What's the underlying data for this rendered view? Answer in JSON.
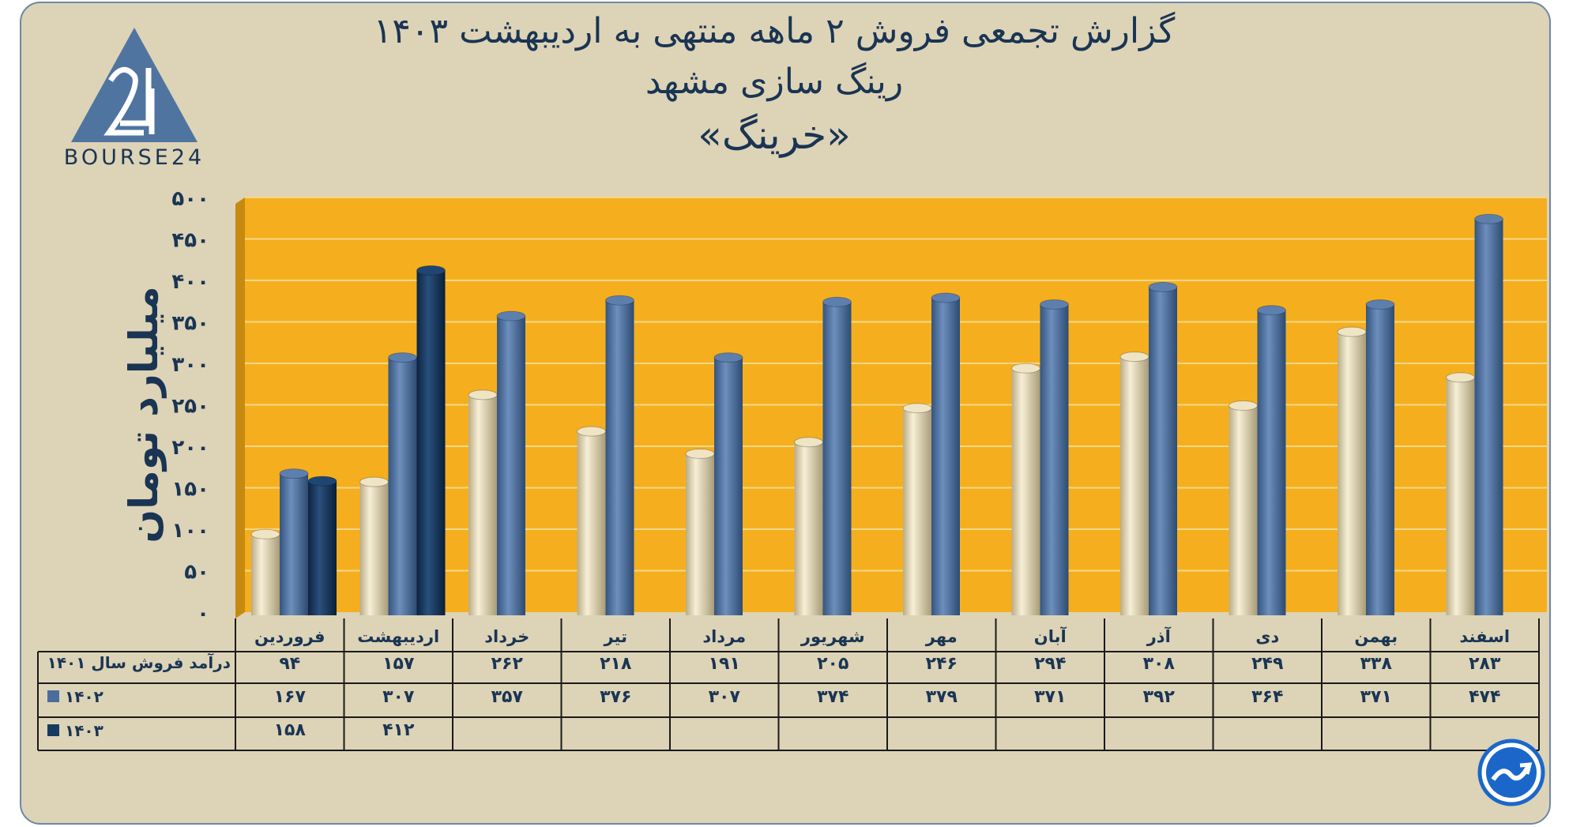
{
  "title": {
    "line1": "گزارش تجمعی فروش ۲ ماهه منتهی به اردیبهشت ۱۴۰۳",
    "line2": "رینگ سازی مشهد",
    "line3": "«خرینگ»"
  },
  "logo": {
    "text": "BOURSE24",
    "icon": "bourse24-logo-icon"
  },
  "badge": {
    "icon": "trend-arrow-icon"
  },
  "colors": {
    "plot_bg": "#f5af1e",
    "s1401": "#e6dab5",
    "s1402": "#4b6d9c",
    "s1403": "#163a61",
    "grid": "#f6d787"
  },
  "chart_data": {
    "type": "bar",
    "ylabel": "میلیارد تومان",
    "ylim": [
      0,
      500
    ],
    "yticks": [
      0,
      50,
      100,
      150,
      200,
      250,
      300,
      350,
      400,
      450,
      500
    ],
    "ytick_labels": [
      "۰",
      "۵۰",
      "۱۰۰",
      "۱۵۰",
      "۲۰۰",
      "۲۵۰",
      "۳۰۰",
      "۳۵۰",
      "۴۰۰",
      "۴۵۰",
      "۵۰۰"
    ],
    "categories": [
      "فروردین",
      "اردیبهشت",
      "خرداد",
      "تیر",
      "مرداد",
      "شهریور",
      "مهر",
      "آبان",
      "آذر",
      "دی",
      "بهمن",
      "اسفند"
    ],
    "series": [
      {
        "name": "درآمد فروش سال ۱۴۰۱",
        "color": "#e6dab5",
        "values": [
          94,
          157,
          262,
          218,
          191,
          205,
          246,
          294,
          308,
          249,
          338,
          283
        ],
        "labels": [
          "۹۴",
          "۱۵۷",
          "۲۶۲",
          "۲۱۸",
          "۱۹۱",
          "۲۰۵",
          "۲۴۶",
          "۲۹۴",
          "۳۰۸",
          "۲۴۹",
          "۳۳۸",
          "۲۸۳"
        ]
      },
      {
        "name": "۱۴۰۲",
        "color": "#4b6d9c",
        "values": [
          167,
          307,
          357,
          376,
          307,
          374,
          379,
          371,
          392,
          364,
          371,
          474
        ],
        "labels": [
          "۱۶۷",
          "۳۰۷",
          "۳۵۷",
          "۳۷۶",
          "۳۰۷",
          "۳۷۴",
          "۳۷۹",
          "۳۷۱",
          "۳۹۲",
          "۳۶۴",
          "۳۷۱",
          "۴۷۴"
        ]
      },
      {
        "name": "۱۴۰۳",
        "color": "#163a61",
        "values": [
          158,
          412,
          null,
          null,
          null,
          null,
          null,
          null,
          null,
          null,
          null,
          null
        ],
        "labels": [
          "۱۵۸",
          "۴۱۲",
          "",
          "",
          "",
          "",
          "",
          "",
          "",
          "",
          "",
          ""
        ]
      }
    ]
  }
}
